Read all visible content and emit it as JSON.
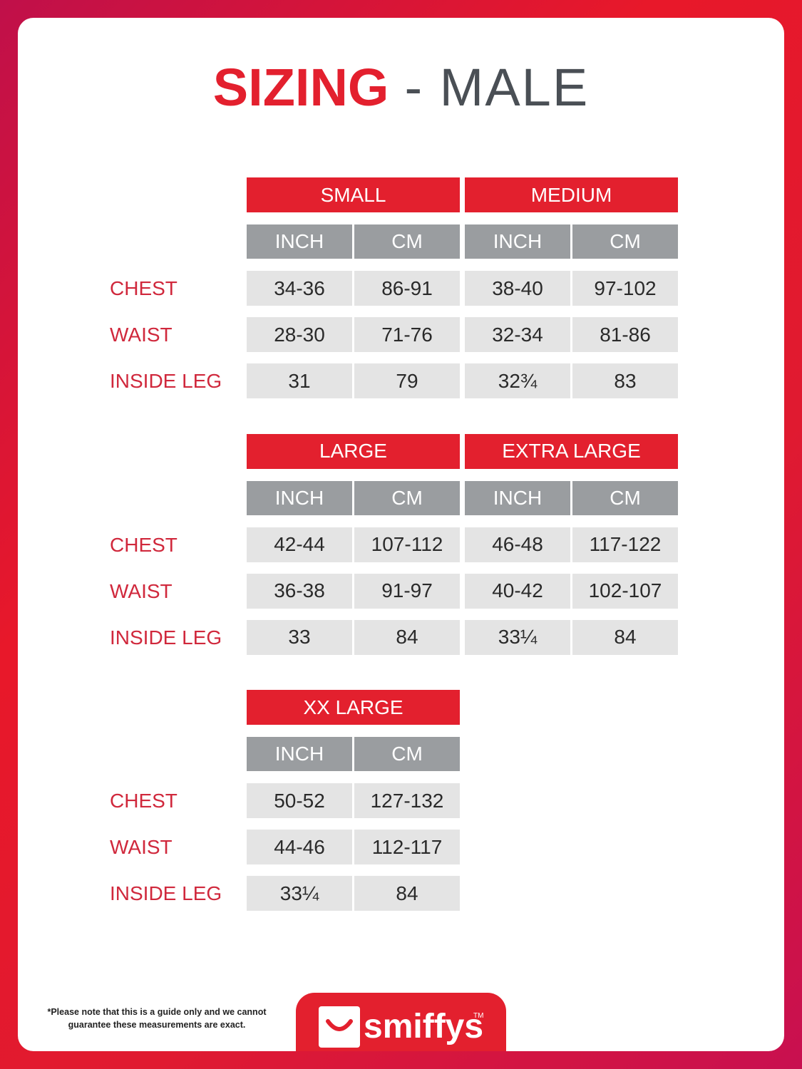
{
  "title": {
    "bold": "SIZING",
    "rest": "- MALE"
  },
  "groups": [
    {
      "row_labels": [
        "CHEST",
        "WAIST",
        "INSIDE LEG"
      ],
      "sizes": [
        {
          "name": "SMALL",
          "units": [
            "INCH",
            "CM"
          ],
          "rows": [
            [
              "34-36",
              "86-91"
            ],
            [
              "28-30",
              "71-76"
            ],
            [
              "31",
              "79"
            ]
          ]
        },
        {
          "name": "MEDIUM",
          "units": [
            "INCH",
            "CM"
          ],
          "rows": [
            [
              "38-40",
              "97-102"
            ],
            [
              "32-34",
              "81-86"
            ],
            [
              "32¾",
              "83"
            ]
          ]
        }
      ]
    },
    {
      "row_labels": [
        "CHEST",
        "WAIST",
        "INSIDE LEG"
      ],
      "sizes": [
        {
          "name": "LARGE",
          "units": [
            "INCH",
            "CM"
          ],
          "rows": [
            [
              "42-44",
              "107-112"
            ],
            [
              "36-38",
              "91-97"
            ],
            [
              "33",
              "84"
            ]
          ]
        },
        {
          "name": "EXTRA LARGE",
          "units": [
            "INCH",
            "CM"
          ],
          "rows": [
            [
              "46-48",
              "117-122"
            ],
            [
              "40-42",
              "102-107"
            ],
            [
              "33¼",
              "84"
            ]
          ]
        }
      ]
    },
    {
      "row_labels": [
        "CHEST",
        "WAIST",
        "INSIDE LEG"
      ],
      "sizes": [
        {
          "name": "XX LARGE",
          "units": [
            "INCH",
            "CM"
          ],
          "rows": [
            [
              "50-52",
              "127-132"
            ],
            [
              "44-46",
              "112-117"
            ],
            [
              "33¼",
              "84"
            ]
          ]
        }
      ]
    }
  ],
  "footnote": [
    "*Please note that this is a guide only and we cannot",
    "guarantee these measurements are exact."
  ],
  "logo": {
    "name": "smiffys",
    "mark": "TM"
  }
}
